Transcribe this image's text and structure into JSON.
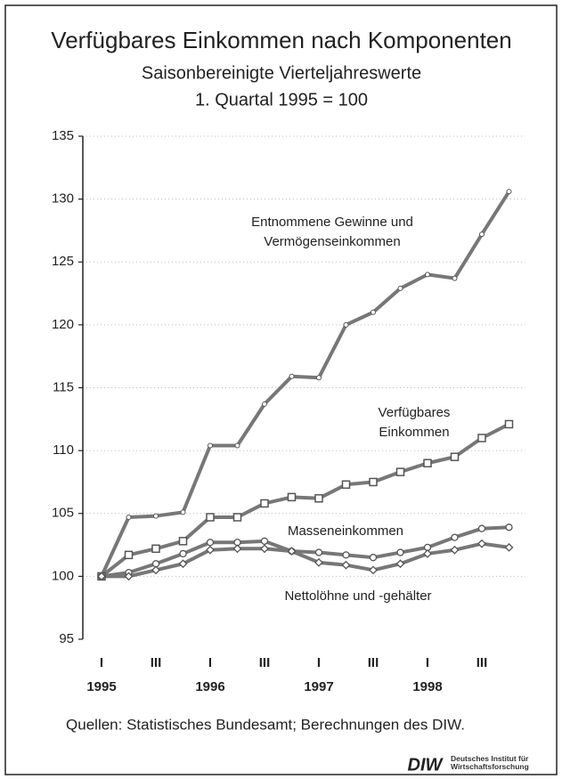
{
  "chart_data": {
    "type": "line",
    "title": "Verfügbares Einkommen nach Komponenten",
    "subtitle": "Saisonbereinigte Vierteljahreswerte",
    "subtitle2": "1. Quartal 1995 = 100",
    "categories": [
      "I",
      null,
      "III",
      null,
      "I",
      null,
      "III",
      null,
      "I",
      null,
      "III",
      null,
      "I",
      null,
      "III",
      null
    ],
    "years": [
      "1995",
      "1996",
      "1997",
      "1998"
    ],
    "series": [
      {
        "name": "Entnommene Gewinne und Vermögenseinkommen",
        "color": "#777777",
        "marker": "dot",
        "values": [
          100,
          104.7,
          104.8,
          105.1,
          110.4,
          110.4,
          113.7,
          115.9,
          115.8,
          120.0,
          121.0,
          122.9,
          124.0,
          123.7,
          127.2,
          130.6
        ]
      },
      {
        "name": "Verfügbares Einkommen",
        "color": "#777777",
        "marker": "square",
        "values": [
          100,
          101.7,
          102.2,
          102.8,
          104.7,
          104.7,
          105.8,
          106.3,
          106.2,
          107.3,
          107.5,
          108.3,
          109.0,
          109.5,
          111.0,
          112.1
        ]
      },
      {
        "name": "Masseneinkommen",
        "color": "#777777",
        "marker": "circle",
        "values": [
          100,
          100.3,
          101.0,
          101.8,
          102.7,
          102.7,
          102.8,
          102.0,
          101.9,
          101.7,
          101.5,
          101.9,
          102.3,
          103.1,
          103.8,
          103.9
        ]
      },
      {
        "name": "Nettolöhne und -gehälter",
        "color": "#777777",
        "marker": "diamond",
        "values": [
          100,
          100.0,
          100.5,
          101.0,
          102.1,
          102.2,
          102.2,
          102.0,
          101.1,
          100.9,
          100.5,
          101.0,
          101.8,
          102.1,
          102.6,
          102.3
        ]
      }
    ],
    "ylim": [
      95,
      135
    ],
    "yticks": [
      95,
      100,
      105,
      110,
      115,
      120,
      125,
      130,
      135
    ],
    "grid": true,
    "source": "Quellen: Statistisches Bundesamt; Berechnungen des DIW.",
    "logo": "DIW",
    "logo_text": "Deutsches Institut für Wirtschaftsforschung"
  }
}
